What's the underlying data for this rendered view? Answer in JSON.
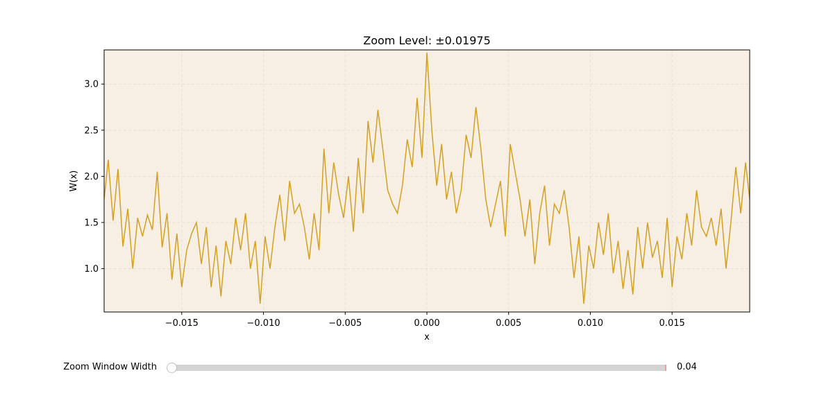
{
  "colors": {
    "line": "#d4a021",
    "plot_background": "#f7efe3",
    "grid": "#e3dccf",
    "slider_fill": "#d4a021",
    "slider_track": "#d3d3d3"
  },
  "chart_data": {
    "type": "line",
    "title": "Zoom Level: ±0.01975",
    "xlabel": "x",
    "ylabel": "W(x)",
    "xlim": [
      -0.01975,
      0.01975
    ],
    "ylim": [
      0.53,
      3.37
    ],
    "xticks": [
      -0.015,
      -0.01,
      -0.005,
      0.0,
      0.005,
      0.01,
      0.015
    ],
    "xtick_labels": [
      "−0.015",
      "−0.010",
      "−0.005",
      "0.000",
      "0.005",
      "0.010",
      "0.015"
    ],
    "yticks": [
      1.0,
      1.5,
      2.0,
      2.5,
      3.0
    ],
    "ytick_labels": [
      "1.0",
      "1.5",
      "2.0",
      "2.5",
      "3.0"
    ],
    "grid": true,
    "series": [
      {
        "x": [
          -0.01975,
          -0.0195,
          -0.0192,
          -0.0189,
          -0.0186,
          -0.0183,
          -0.018,
          -0.0177,
          -0.0174,
          -0.0171,
          -0.0168,
          -0.0165,
          -0.0162,
          -0.0159,
          -0.0156,
          -0.0153,
          -0.015,
          -0.0147,
          -0.0144,
          -0.0141,
          -0.0138,
          -0.0135,
          -0.0132,
          -0.0129,
          -0.0126,
          -0.0123,
          -0.012,
          -0.0117,
          -0.0114,
          -0.0111,
          -0.0108,
          -0.0105,
          -0.0102,
          -0.0099,
          -0.0096,
          -0.0093,
          -0.009,
          -0.0087,
          -0.0084,
          -0.0081,
          -0.0078,
          -0.0075,
          -0.0072,
          -0.0069,
          -0.0066,
          -0.0063,
          -0.006,
          -0.0057,
          -0.0054,
          -0.0051,
          -0.0048,
          -0.0045,
          -0.0042,
          -0.0039,
          -0.0036,
          -0.0033,
          -0.003,
          -0.0027,
          -0.0024,
          -0.0021,
          -0.0018,
          -0.0015,
          -0.0012,
          -0.0009,
          -0.0006,
          -0.0003,
          0.0,
          0.0003,
          0.0006,
          0.0009,
          0.0012,
          0.0015,
          0.0018,
          0.0021,
          0.0024,
          0.0027,
          0.003,
          0.0033,
          0.0036,
          0.0039,
          0.0042,
          0.0045,
          0.0048,
          0.0051,
          0.0054,
          0.0057,
          0.006,
          0.0063,
          0.0066,
          0.0069,
          0.0072,
          0.0075,
          0.0078,
          0.0081,
          0.0084,
          0.0087,
          0.009,
          0.0093,
          0.0096,
          0.0099,
          0.0102,
          0.0105,
          0.0108,
          0.0111,
          0.0114,
          0.0117,
          0.012,
          0.0123,
          0.0126,
          0.0129,
          0.0132,
          0.0135,
          0.0138,
          0.0141,
          0.0144,
          0.0147,
          0.015,
          0.0153,
          0.0156,
          0.0159,
          0.0162,
          0.0165,
          0.0168,
          0.0171,
          0.0174,
          0.0177,
          0.018,
          0.0183,
          0.0186,
          0.0189,
          0.0192,
          0.0195,
          0.01975
        ],
        "y": [
          1.75,
          2.18,
          1.52,
          2.08,
          1.24,
          1.65,
          1.0,
          1.55,
          1.35,
          1.58,
          1.42,
          2.05,
          1.23,
          1.6,
          0.88,
          1.38,
          0.8,
          1.2,
          1.38,
          1.5,
          1.05,
          1.45,
          0.8,
          1.25,
          0.7,
          1.3,
          1.05,
          1.55,
          1.2,
          1.6,
          1.0,
          1.3,
          0.62,
          1.35,
          1.0,
          1.45,
          1.8,
          1.3,
          1.95,
          1.6,
          1.7,
          1.45,
          1.1,
          1.6,
          1.2,
          2.3,
          1.6,
          2.15,
          1.8,
          1.55,
          2.0,
          1.4,
          2.2,
          1.6,
          2.6,
          2.15,
          2.72,
          2.3,
          1.85,
          1.7,
          1.6,
          1.9,
          2.4,
          2.1,
          2.85,
          2.2,
          3.34,
          2.5,
          1.9,
          2.35,
          1.75,
          2.05,
          1.6,
          1.85,
          2.45,
          2.2,
          2.75,
          2.3,
          1.75,
          1.45,
          1.7,
          1.95,
          1.35,
          2.35,
          2.05,
          1.75,
          1.35,
          1.75,
          1.05,
          1.6,
          1.9,
          1.25,
          1.7,
          1.6,
          1.85,
          1.45,
          0.9,
          1.35,
          0.62,
          1.25,
          1.0,
          1.5,
          1.15,
          1.6,
          0.95,
          1.3,
          0.78,
          1.2,
          0.72,
          1.45,
          1.0,
          1.5,
          1.12,
          1.3,
          0.9,
          1.55,
          0.8,
          1.35,
          1.1,
          1.6,
          1.25,
          1.85,
          1.45,
          1.35,
          1.55,
          1.25,
          1.65,
          1.0,
          1.5,
          2.1,
          1.6,
          2.15,
          1.75
        ]
      }
    ]
  },
  "slider": {
    "label": "Zoom Window Width",
    "value_text": "0.04",
    "fraction": 0.0
  }
}
